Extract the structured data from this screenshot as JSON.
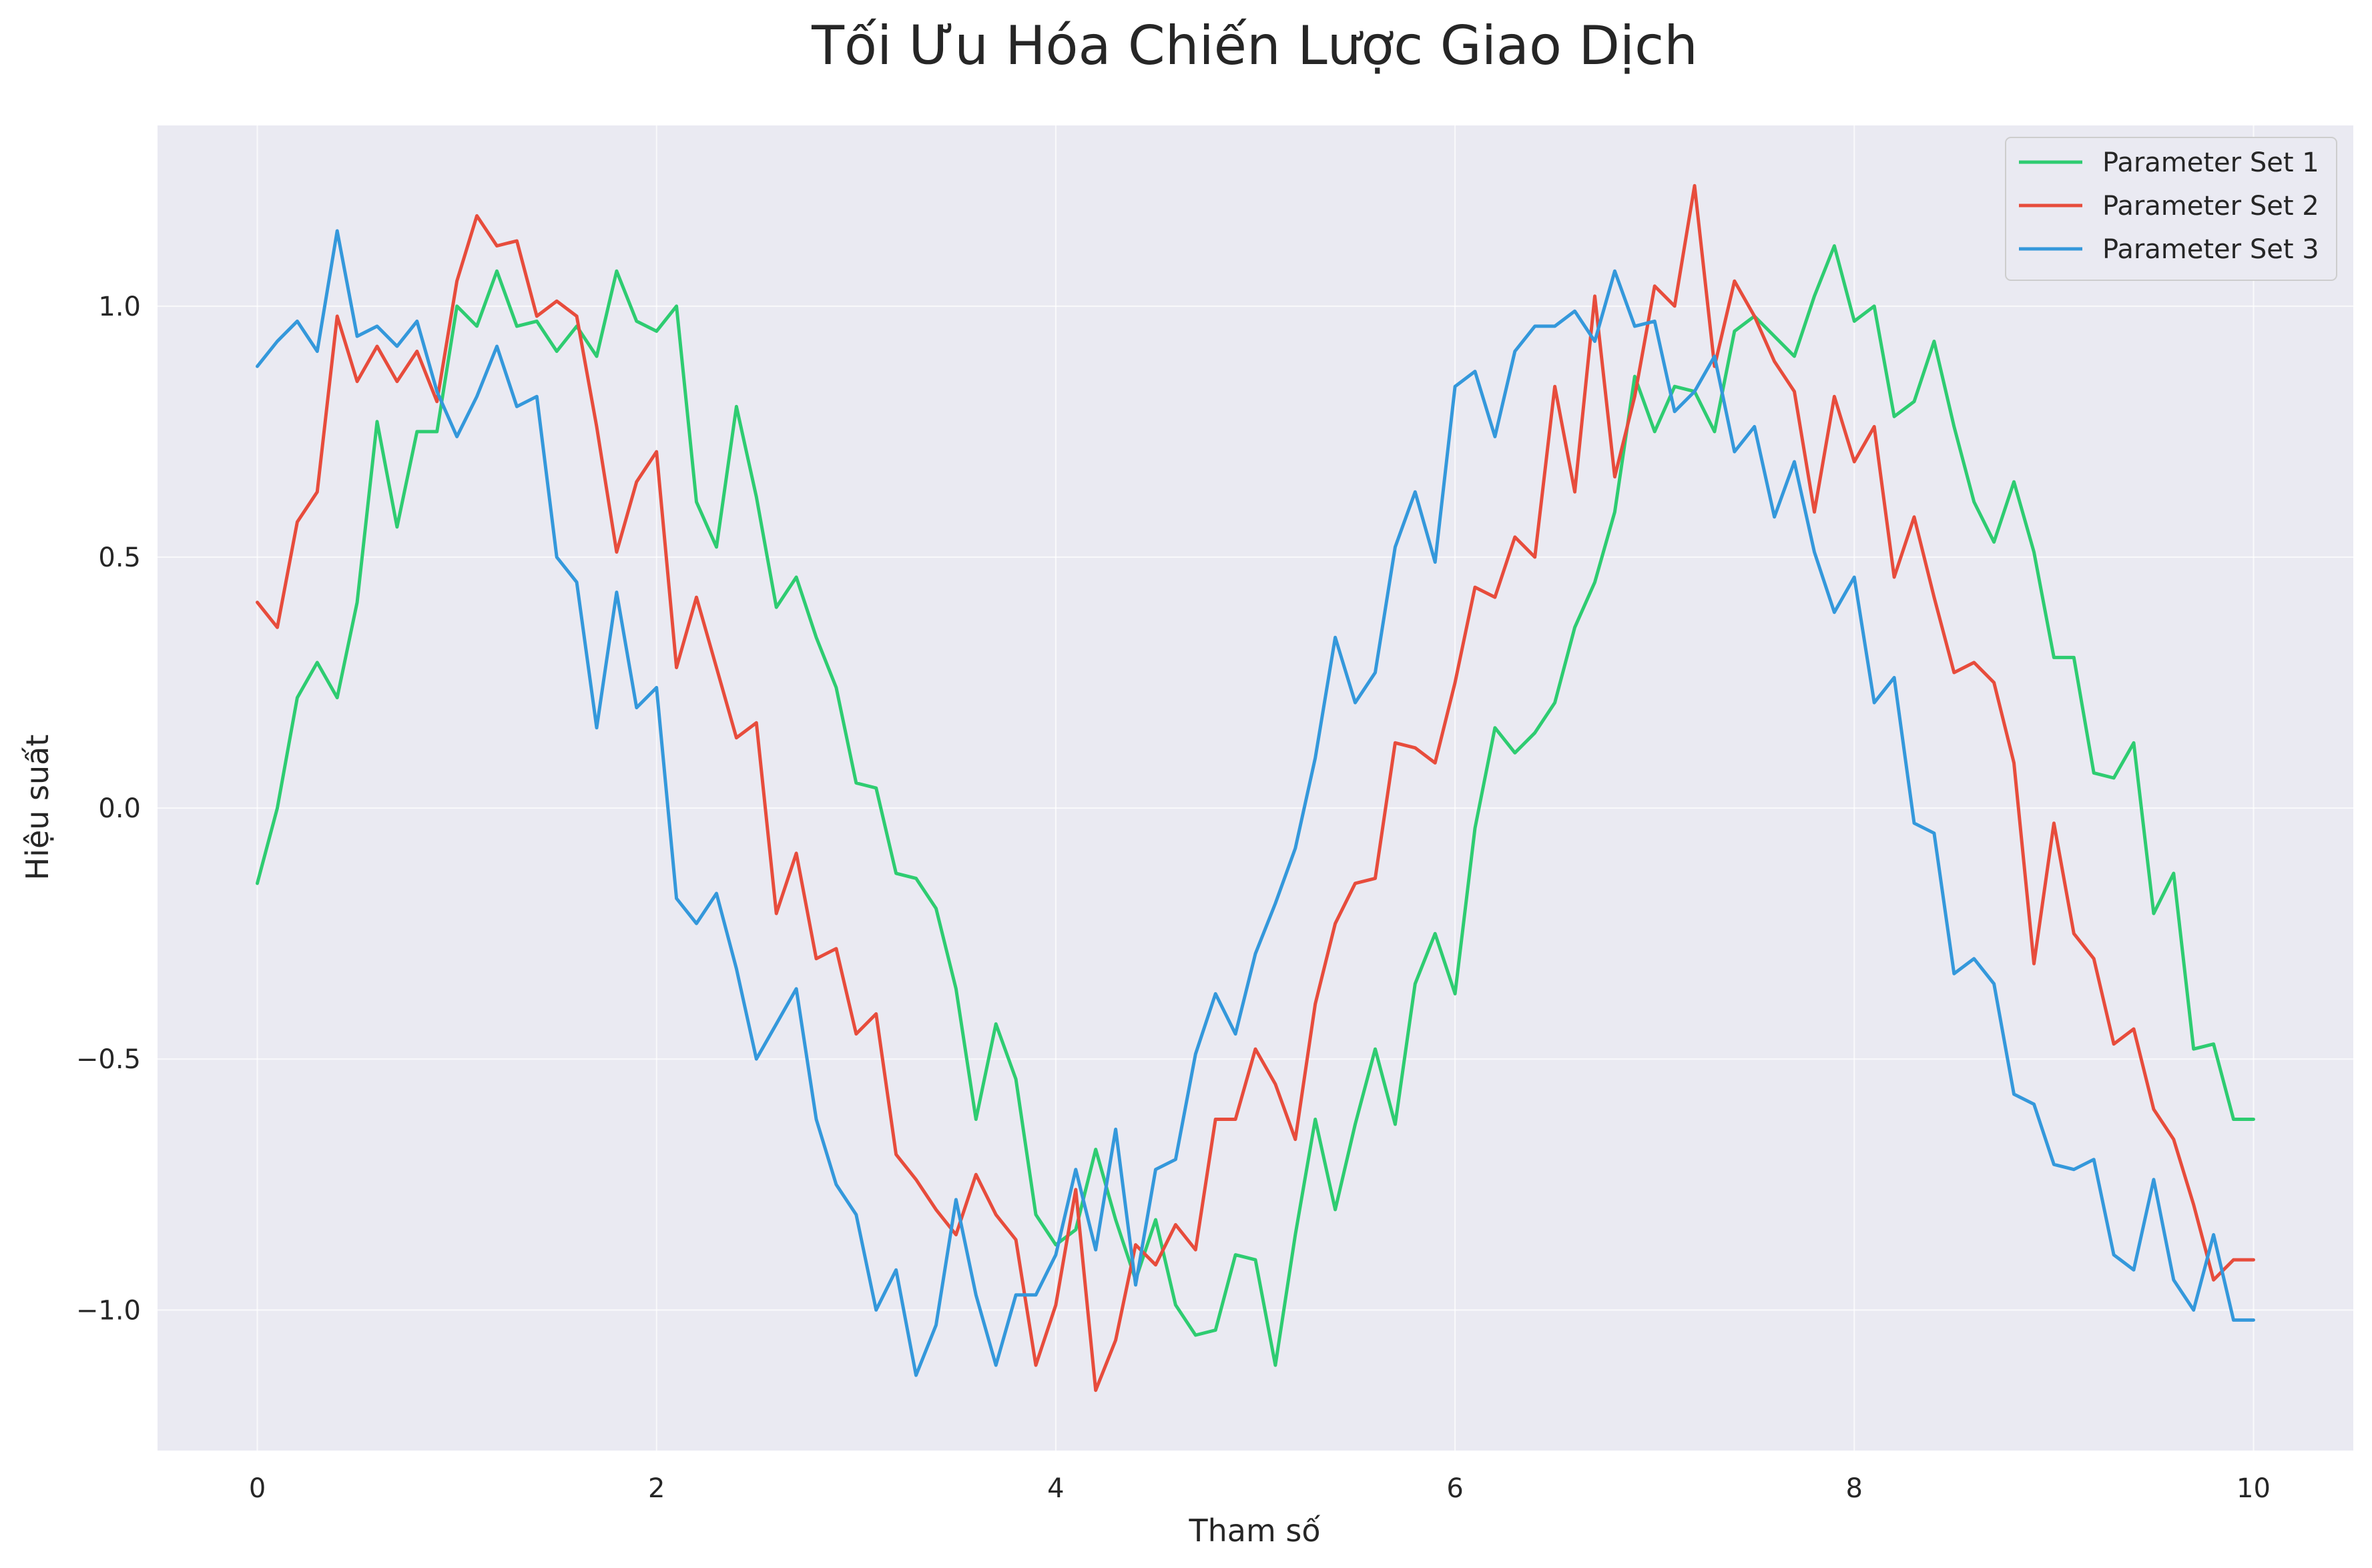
{
  "chart_data": {
    "type": "line",
    "title": "Tối Ưu Hóa Chiến Lược Giao Dịch",
    "xlabel": "Tham số",
    "ylabel": "Hiệu suất",
    "xlim": [
      -0.5,
      10.5
    ],
    "ylim": [
      -1.28,
      1.36
    ],
    "xticks": [
      0,
      2,
      4,
      6,
      8,
      10
    ],
    "xtick_labels": [
      "0",
      "2",
      "4",
      "6",
      "8",
      "10"
    ],
    "yticks": [
      -1.0,
      -0.5,
      0.0,
      0.5,
      1.0
    ],
    "ytick_labels": [
      "−1.0",
      "−0.5",
      "0.0",
      "0.5",
      "1.0"
    ],
    "grid": true,
    "legend_position": "top-right",
    "background": "#eaeaf2",
    "x": [
      0,
      0.1,
      0.2,
      0.3,
      0.4,
      0.5,
      0.6,
      0.7,
      0.8,
      0.9,
      1,
      1.1,
      1.2,
      1.3,
      1.4,
      1.5,
      1.6,
      1.7,
      1.8,
      1.9,
      2,
      2.1,
      2.2,
      2.3,
      2.4,
      2.5,
      2.6,
      2.7,
      2.8,
      2.9,
      3,
      3.1,
      3.2,
      3.3,
      3.4,
      3.5,
      3.6,
      3.7,
      3.8,
      3.9,
      4,
      4.1,
      4.2,
      4.3,
      4.4,
      4.5,
      4.6,
      4.7,
      4.8,
      4.9,
      5,
      5.1,
      5.2,
      5.3,
      5.4,
      5.5,
      5.6,
      5.7,
      5.8,
      5.9,
      6,
      6.1,
      6.2,
      6.3,
      6.4,
      6.5,
      6.6,
      6.7,
      6.8,
      6.9,
      7,
      7.1,
      7.2,
      7.3,
      7.4,
      7.5,
      7.6,
      7.7,
      7.8,
      7.9,
      8,
      8.1,
      8.2,
      8.3,
      8.4,
      8.5,
      8.6,
      8.7,
      8.8,
      8.9,
      9,
      9.1,
      9.2,
      9.3,
      9.4,
      9.5,
      9.6,
      9.7,
      9.8,
      9.9,
      10
    ],
    "series": [
      {
        "name": "Parameter Set 1",
        "color": "#2ecc71",
        "values": [
          -0.15,
          0.0,
          0.22,
          0.29,
          0.22,
          0.41,
          0.77,
          0.56,
          0.75,
          0.75,
          1.0,
          0.96,
          1.07,
          0.96,
          0.97,
          0.91,
          0.96,
          0.9,
          1.07,
          0.97,
          0.95,
          1.0,
          0.61,
          0.52,
          0.8,
          0.62,
          0.4,
          0.46,
          0.34,
          0.24,
          0.05,
          0.04,
          -0.13,
          -0.14,
          -0.2,
          -0.36,
          -0.62,
          -0.43,
          -0.54,
          -0.81,
          -0.87,
          -0.84,
          -0.68,
          -0.82,
          -0.94,
          -0.82,
          -0.99,
          -1.05,
          -1.04,
          -0.89,
          -0.9,
          -1.11,
          -0.85,
          -0.62,
          -0.8,
          -0.63,
          -0.48,
          -0.63,
          -0.35,
          -0.25,
          -0.37,
          -0.04,
          0.16,
          0.11,
          0.15,
          0.21,
          0.36,
          0.45,
          0.59,
          0.86,
          0.75,
          0.84,
          0.83,
          0.75,
          0.95,
          0.98,
          0.94,
          0.9,
          1.02,
          1.12,
          0.97,
          1.0,
          0.78,
          0.81,
          0.93,
          0.76,
          0.61,
          0.53,
          0.65,
          0.51,
          0.3,
          0.3,
          0.07,
          0.06,
          0.13,
          -0.21,
          -0.13,
          -0.48,
          -0.47,
          -0.62,
          -0.62
        ]
      },
      {
        "name": "Parameter Set 2",
        "color": "#e74c3c",
        "values": [
          0.41,
          0.36,
          0.57,
          0.63,
          0.98,
          0.85,
          0.92,
          0.85,
          0.91,
          0.81,
          1.05,
          1.18,
          1.12,
          1.13,
          0.98,
          1.01,
          0.98,
          0.76,
          0.51,
          0.65,
          0.71,
          0.28,
          0.42,
          0.28,
          0.14,
          0.17,
          -0.21,
          -0.09,
          -0.3,
          -0.28,
          -0.45,
          -0.41,
          -0.69,
          -0.74,
          -0.8,
          -0.85,
          -0.73,
          -0.81,
          -0.86,
          -1.11,
          -0.99,
          -0.76,
          -1.16,
          -1.06,
          -0.87,
          -0.91,
          -0.83,
          -0.88,
          -0.62,
          -0.62,
          -0.48,
          -0.55,
          -0.66,
          -0.39,
          -0.23,
          -0.15,
          -0.14,
          0.13,
          0.12,
          0.09,
          0.25,
          0.44,
          0.42,
          0.54,
          0.5,
          0.84,
          0.63,
          1.02,
          0.66,
          0.82,
          1.04,
          1.0,
          1.24,
          0.88,
          1.05,
          0.98,
          0.89,
          0.83,
          0.59,
          0.82,
          0.69,
          0.76,
          0.46,
          0.58,
          0.42,
          0.27,
          0.29,
          0.25,
          0.09,
          -0.31,
          -0.03,
          -0.25,
          -0.3,
          -0.47,
          -0.44,
          -0.6,
          -0.66,
          -0.79,
          -0.94,
          -0.9,
          -0.9
        ]
      },
      {
        "name": "Parameter Set 3",
        "color": "#3498db",
        "values": [
          0.88,
          0.93,
          0.97,
          0.91,
          1.15,
          0.94,
          0.96,
          0.92,
          0.97,
          0.83,
          0.74,
          0.82,
          0.92,
          0.8,
          0.82,
          0.5,
          0.45,
          0.16,
          0.43,
          0.2,
          0.24,
          -0.18,
          -0.23,
          -0.17,
          -0.32,
          -0.5,
          -0.43,
          -0.36,
          -0.62,
          -0.75,
          -0.81,
          -1.0,
          -0.92,
          -1.13,
          -1.03,
          -0.78,
          -0.97,
          -1.11,
          -0.97,
          -0.97,
          -0.89,
          -0.72,
          -0.88,
          -0.64,
          -0.95,
          -0.72,
          -0.7,
          -0.49,
          -0.37,
          -0.45,
          -0.29,
          -0.19,
          -0.08,
          0.1,
          0.34,
          0.21,
          0.27,
          0.52,
          0.63,
          0.49,
          0.84,
          0.87,
          0.74,
          0.91,
          0.96,
          0.96,
          0.99,
          0.93,
          1.07,
          0.96,
          0.97,
          0.79,
          0.83,
          0.9,
          0.71,
          0.76,
          0.58,
          0.69,
          0.51,
          0.39,
          0.46,
          0.21,
          0.26,
          -0.03,
          -0.05,
          -0.33,
          -0.3,
          -0.35,
          -0.57,
          -0.59,
          -0.71,
          -0.72,
          -0.7,
          -0.89,
          -0.92,
          -0.74,
          -0.94,
          -1.0,
          -0.85,
          -1.02,
          -1.02
        ]
      }
    ]
  }
}
